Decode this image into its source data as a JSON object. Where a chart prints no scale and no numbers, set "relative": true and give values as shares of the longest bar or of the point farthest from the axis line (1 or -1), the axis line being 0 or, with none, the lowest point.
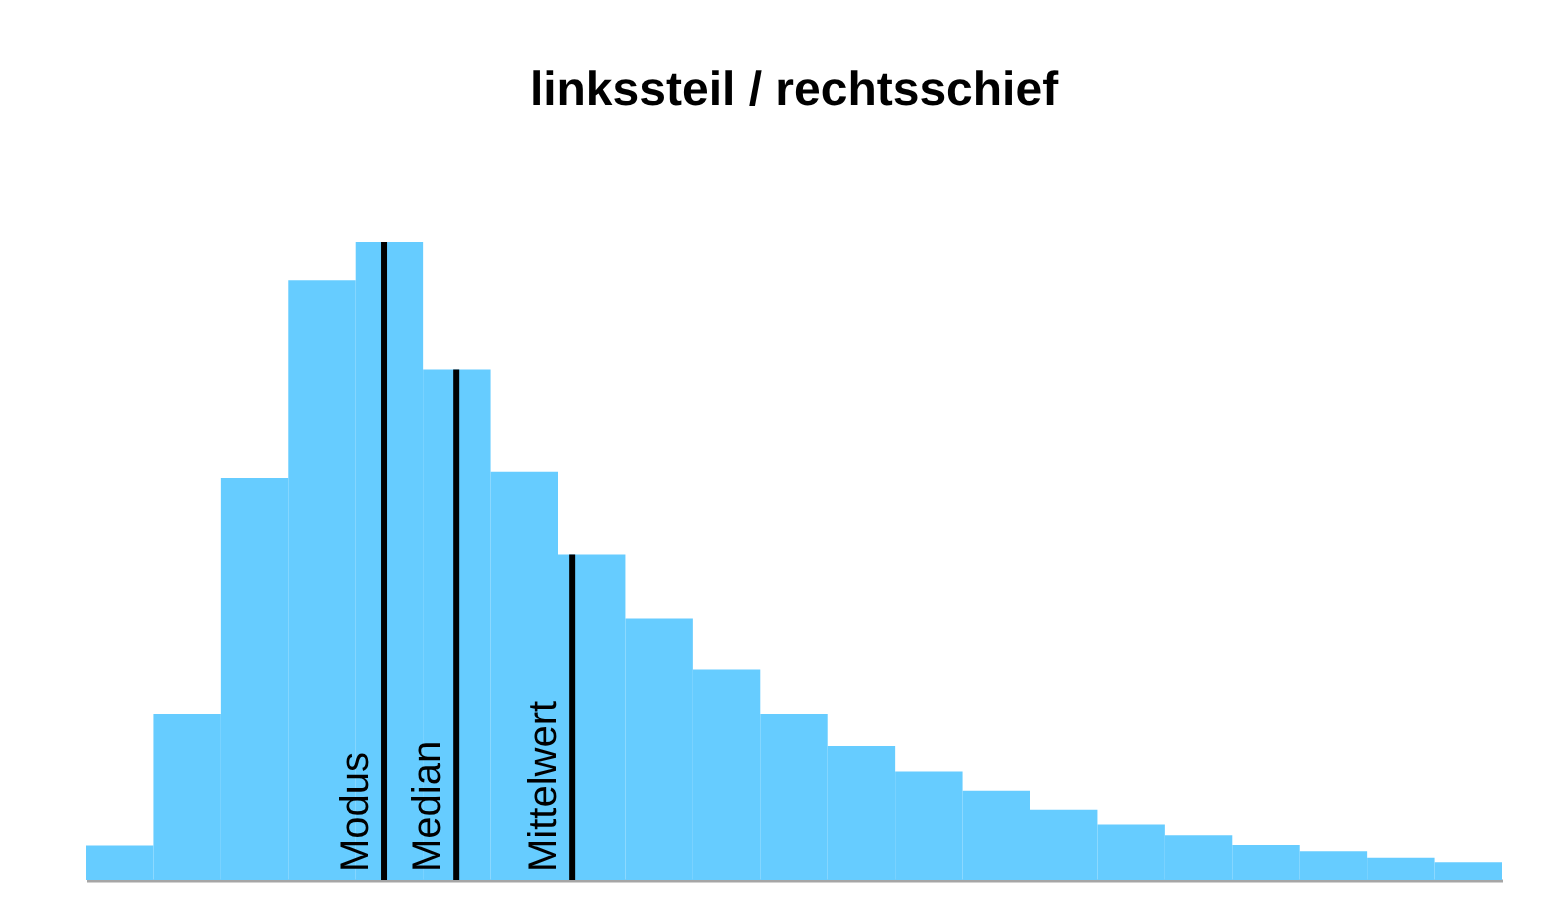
{
  "chart_data": {
    "type": "bar",
    "title": "linkssteil / rechtsschief",
    "relative": true,
    "categories": [
      null,
      null,
      null,
      null,
      null,
      null,
      null,
      null,
      null,
      null,
      null,
      null,
      null,
      null,
      null,
      null,
      null,
      null,
      null,
      null,
      null
    ],
    "values": [
      0.054,
      0.26,
      0.63,
      0.94,
      1,
      0.8,
      0.64,
      0.51,
      0.41,
      0.33,
      0.26,
      0.21,
      0.17,
      0.14,
      0.11,
      0.087,
      0.07,
      0.055,
      0.045,
      0.035,
      0.028
    ],
    "color": "#66ccff",
    "annotations": [
      "Modus",
      "Median",
      "Mittelwert"
    ]
  }
}
